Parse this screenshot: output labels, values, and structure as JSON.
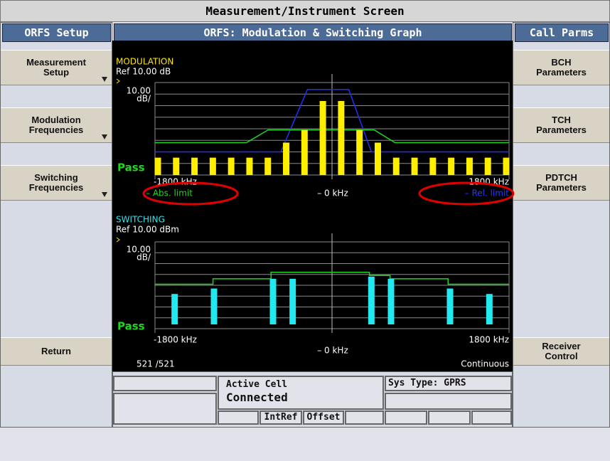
{
  "title": "Measurement/Instrument Screen",
  "left_panel": {
    "header": "ORFS Setup",
    "buttons": [
      [
        "Measurement",
        "Setup"
      ],
      [
        "Modulation",
        "Frequencies"
      ],
      [
        "Switching",
        "Frequencies"
      ],
      [
        "Return"
      ]
    ]
  },
  "right_panel": {
    "header": "Call Parms",
    "buttons": [
      [
        "BCH",
        "Parameters"
      ],
      [
        "TCH",
        "Parameters"
      ],
      [
        "PDTCH",
        "Parameters"
      ],
      [
        "Receiver",
        "Control"
      ]
    ]
  },
  "graph": {
    "header": "ORFS: Modulation & Switching Graph",
    "modulation": {
      "label": "MODULATION",
      "ref": "Ref  10.00 dB",
      "scale": [
        "10.00",
        "dB/"
      ],
      "status": "Pass",
      "x_left": "-1800 kHz",
      "x_right": "1800 kHz",
      "center": "– 0 kHz",
      "abs_limit_label": "– Abs. limit",
      "rel_limit_label": "– Rel. limit",
      "ylim": [
        -70,
        10
      ],
      "xlim": [
        -1800,
        1800
      ],
      "values": [
        -55,
        -55,
        -55,
        -55,
        -55,
        -55,
        -55,
        -42,
        -31,
        -6,
        -6,
        -31,
        -42,
        -55,
        -55,
        -55,
        -55,
        -55,
        -55,
        -55
      ],
      "abs_limit": {
        "x": [
          -1800,
          -870,
          -650,
          430,
          640,
          1800
        ],
        "values": [
          -42,
          -42,
          -31,
          -31,
          -42,
          -42
        ]
      },
      "rel_limit": {
        "x": [
          -1800,
          -520,
          -250,
          170,
          400,
          1800
        ],
        "values": [
          -50,
          -50,
          4,
          4,
          -50,
          -50
        ]
      }
    },
    "switching": {
      "label": "SWITCHING",
      "ref": "Ref  10.00 dBm",
      "scale": [
        "10.00",
        "dB/"
      ],
      "status": "Pass",
      "x_left": "-1800 kHz",
      "x_right": "1800 kHz",
      "center": "– 0 kHz",
      "count": "521 /521",
      "mode": "Continuous",
      "ylim": [
        -70,
        10
      ],
      "xlim": [
        -1800,
        1800
      ],
      "x": [
        -1600,
        -1200,
        -600,
        -400,
        400,
        600,
        1200,
        1600
      ],
      "values": [
        -38,
        -33,
        -24,
        -24,
        -22,
        -24,
        -33,
        -38
      ],
      "limit": {
        "x": [
          -1800,
          -1210,
          -1210,
          -620,
          -620,
          380,
          380,
          590,
          590,
          1180,
          1180,
          1800
        ],
        "values": [
          -29,
          -29,
          -24,
          -24,
          -18,
          -18,
          -21,
          -21,
          -24,
          -24,
          -29,
          -29
        ]
      }
    }
  },
  "status": {
    "active_cell_label": "Active Cell",
    "active_cell_value": "Connected",
    "sys_type": "Sys Type: GPRS",
    "indicators": [
      "IntRef",
      "Offset"
    ]
  }
}
